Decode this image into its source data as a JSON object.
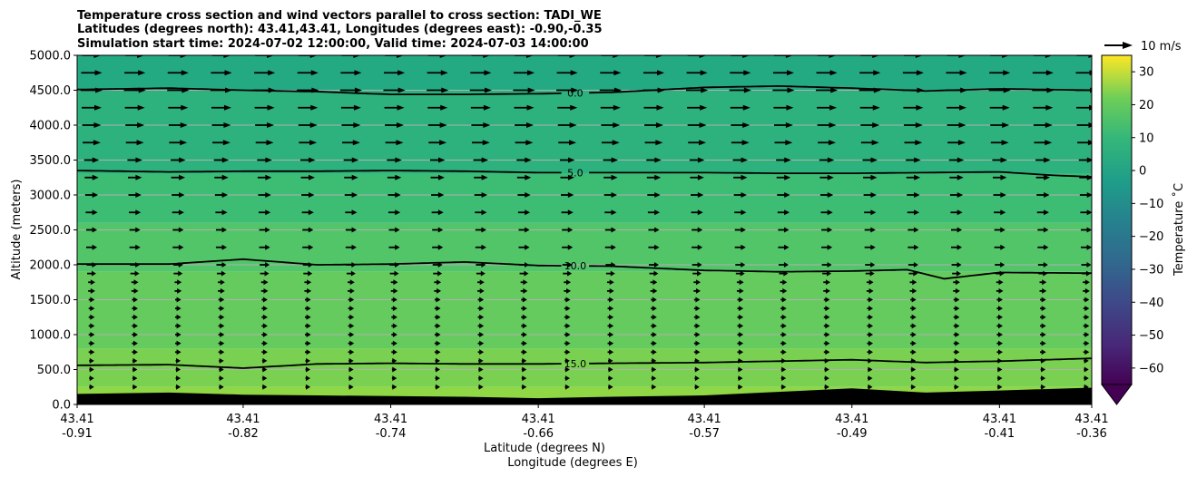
{
  "chart_data": {
    "type": "contourf_quiver",
    "title": [
      "Temperature cross section and wind vectors parallel to cross section: TADI_WE",
      "Latitudes (degrees north): 43.41,43.41, Longitudes (degrees east): -0.90,-0.35",
      "Simulation start time: 2024-07-02 12:00:00, Valid time: 2024-07-03 14:00:00"
    ],
    "ylabel": "Altitude (meters)",
    "xlabel_lines": [
      "Latitude (degrees N)",
      "Longitude (degrees E)"
    ],
    "ylim": [
      0,
      5000
    ],
    "xlim": [
      -0.91,
      -0.36
    ],
    "y_ticks": [
      0,
      500,
      1000,
      1500,
      2000,
      2500,
      3000,
      3500,
      4000,
      4500,
      5000
    ],
    "y_tick_labels": [
      "0.0",
      "500.0",
      "1000.0",
      "1500.0",
      "2000.0",
      "2500.0",
      "3000.0",
      "3500.0",
      "4000.0",
      "4500.0",
      "5000.0"
    ],
    "x_ticks": [
      -0.91,
      -0.82,
      -0.74,
      -0.66,
      -0.57,
      -0.49,
      -0.41,
      -0.36
    ],
    "x_tick_labels": [
      {
        "lat": "43.41",
        "lon": "-0.91"
      },
      {
        "lat": "43.41",
        "lon": "-0.82"
      },
      {
        "lat": "43.41",
        "lon": "-0.74"
      },
      {
        "lat": "43.41",
        "lon": "-0.66"
      },
      {
        "lat": "43.41",
        "lon": "-0.57"
      },
      {
        "lat": "43.41",
        "lon": "-0.49"
      },
      {
        "lat": "43.41",
        "lon": "-0.41"
      },
      {
        "lat": "43.41",
        "lon": "-0.36"
      }
    ],
    "grid": "horizontal",
    "temperature_layers": [
      {
        "bottom": 0,
        "top": 250,
        "color": "#8fd744"
      },
      {
        "bottom": 250,
        "top": 800,
        "color": "#7ad151"
      },
      {
        "bottom": 800,
        "top": 1900,
        "color": "#65cb5e"
      },
      {
        "bottom": 1900,
        "top": 2600,
        "color": "#52c569"
      },
      {
        "bottom": 2600,
        "top": 3300,
        "color": "#3dbc74"
      },
      {
        "bottom": 3300,
        "top": 4500,
        "color": "#2db27d"
      },
      {
        "bottom": 4500,
        "top": 5000,
        "color": "#24aa83"
      }
    ],
    "terrain": {
      "x": [
        -0.91,
        -0.86,
        -0.82,
        -0.78,
        -0.74,
        -0.7,
        -0.66,
        -0.62,
        -0.57,
        -0.53,
        -0.49,
        -0.45,
        -0.41,
        -0.36
      ],
      "height": [
        150,
        170,
        140,
        130,
        120,
        110,
        90,
        110,
        130,
        180,
        230,
        170,
        200,
        240
      ],
      "color": "#000000"
    },
    "contours": [
      {
        "level": "0.0",
        "label_x": -0.64,
        "x": [
          -0.91,
          -0.86,
          -0.82,
          -0.78,
          -0.74,
          -0.7,
          -0.66,
          -0.62,
          -0.57,
          -0.53,
          -0.49,
          -0.45,
          -0.41,
          -0.36
        ],
        "y": [
          4510,
          4530,
          4500,
          4480,
          4440,
          4440,
          4450,
          4470,
          4540,
          4560,
          4530,
          4490,
          4520,
          4500
        ]
      },
      {
        "level": "5.0",
        "label_x": -0.64,
        "x": [
          -0.91,
          -0.86,
          -0.82,
          -0.78,
          -0.74,
          -0.7,
          -0.66,
          -0.62,
          -0.57,
          -0.53,
          -0.49,
          -0.45,
          -0.41,
          -0.38,
          -0.36
        ],
        "y": [
          3350,
          3330,
          3340,
          3340,
          3350,
          3340,
          3320,
          3320,
          3320,
          3310,
          3310,
          3320,
          3330,
          3280,
          3260
        ]
      },
      {
        "level": "10.0",
        "label_x": -0.64,
        "x": [
          -0.91,
          -0.86,
          -0.82,
          -0.78,
          -0.74,
          -0.7,
          -0.66,
          -0.62,
          -0.57,
          -0.53,
          -0.49,
          -0.46,
          -0.44,
          -0.41,
          -0.36
        ],
        "y": [
          2010,
          2010,
          2080,
          2000,
          2010,
          2040,
          1990,
          1980,
          1920,
          1900,
          1910,
          1930,
          1800,
          1890,
          1880
        ]
      },
      {
        "level": "15.0",
        "label_x": -0.64,
        "x": [
          -0.91,
          -0.86,
          -0.82,
          -0.78,
          -0.74,
          -0.7,
          -0.66,
          -0.62,
          -0.57,
          -0.53,
          -0.49,
          -0.45,
          -0.41,
          -0.36
        ],
        "y": [
          560,
          570,
          520,
          580,
          590,
          580,
          580,
          590,
          600,
          620,
          640,
          600,
          620,
          660
        ]
      }
    ],
    "wind_vectors": {
      "x_count": 24,
      "levels": [
        250,
        375,
        500,
        625,
        750,
        875,
        1000,
        1125,
        1250,
        1375,
        1500,
        1625,
        1750,
        1875,
        2000,
        2250,
        2500,
        2750,
        3000,
        3250,
        3500,
        3750,
        4000,
        4250,
        4500,
        4750,
        5000
      ],
      "u_ms": [
        2.5,
        2.5,
        2.5,
        2.5,
        3.0,
        3.0,
        3.0,
        3.0,
        3.0,
        3.0,
        3.0,
        3.5,
        3.5,
        4.5,
        5.0,
        5.5,
        5.5,
        6.0,
        6.5,
        7.0,
        7.5,
        9.0,
        9.5,
        10.0,
        11.0,
        10.5,
        9.5
      ]
    },
    "colorbar": {
      "label": "Temperature ˚C",
      "min": -65,
      "max": 35,
      "ticks": [
        30,
        20,
        10,
        0,
        -10,
        -20,
        -30,
        -40,
        -50,
        -60
      ],
      "tick_labels": [
        "30",
        "20",
        "10",
        "0",
        "−10",
        "−20",
        "−30",
        "−40",
        "−50",
        "−60"
      ],
      "extend": "min",
      "colormap": "viridis"
    },
    "quiver_key": {
      "label": "10 m/s",
      "speed": 10
    }
  }
}
